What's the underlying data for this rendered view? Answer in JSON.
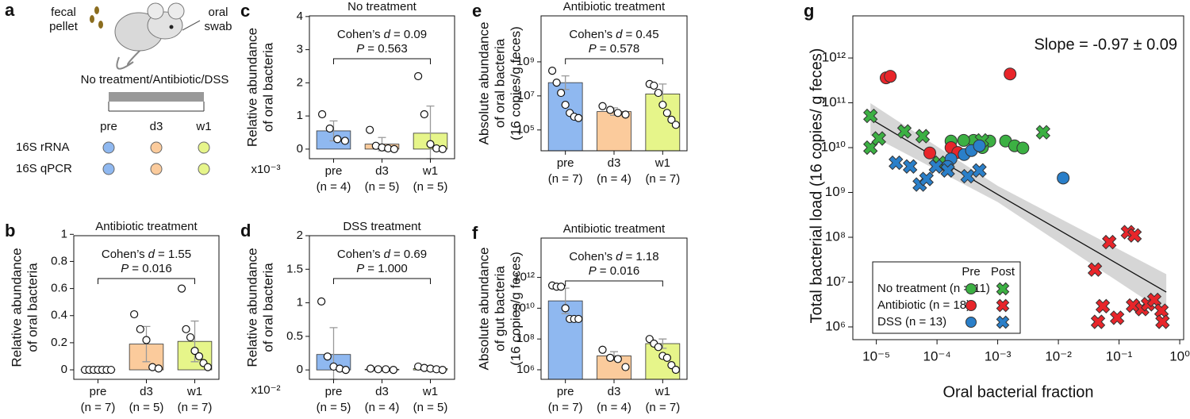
{
  "schematic": {
    "panel": "a",
    "pellet_label": [
      "fecal",
      "pellet"
    ],
    "swab_label": [
      "oral",
      "swab"
    ],
    "treatments": "No treatment/Antibiotic/DSS",
    "timepoints": [
      "pre",
      "d3",
      "w1"
    ],
    "assays": [
      "16S rRNA",
      "16S qPCR"
    ],
    "timepoint_colors": [
      "#8fb8f0",
      "#fbcb9c",
      "#e6f58a"
    ]
  },
  "chart_data": [
    {
      "panel": "b",
      "type": "bar",
      "title": "Antibiotic treatment",
      "y_label": [
        "Relative abundance",
        "of oral bacteria"
      ],
      "categories": [
        "pre",
        "d3",
        "w1"
      ],
      "category_n": [
        "(n = 7)",
        "(n = 5)",
        "(n = 7)"
      ],
      "colors": [
        "#8fb8f0",
        "#fbcb9c",
        "#e6f58a"
      ],
      "values": [
        0.003,
        0.19,
        0.21
      ],
      "error_upper": [
        0.006,
        0.32,
        0.36
      ],
      "points": [
        [
          0,
          0,
          0,
          0,
          0,
          0,
          0
        ],
        [
          0.41,
          0.3,
          0.22,
          0.02,
          0.01
        ],
        [
          0.6,
          0.3,
          0.24,
          0.14,
          0.1,
          0.05,
          0.02
        ]
      ],
      "ylim": [
        -0.07,
        0.99
      ],
      "yticks": [
        0,
        0.2,
        0.4,
        0.6,
        0.8,
        1
      ],
      "comparison": {
        "effect_label": "Cohen’s",
        "effect_symbol": "d",
        "effect_value": "= 1.55",
        "p_symbol": "P",
        "p_value": "= 0.016"
      }
    },
    {
      "panel": "c",
      "type": "bar",
      "title": "No treatment",
      "y_label": [
        "Relative abundance",
        "of oral bacteria"
      ],
      "multiplier": "x10⁻³",
      "categories": [
        "pre",
        "d3",
        "w1"
      ],
      "category_n": [
        "(n = 4)",
        "(n = 5)",
        "(n = 5)"
      ],
      "colors": [
        "#8fb8f0",
        "#fbcb9c",
        "#e6f58a"
      ],
      "values": [
        0.55,
        0.15,
        0.48
      ],
      "error_upper": [
        0.85,
        0.35,
        1.3
      ],
      "points": [
        [
          1.05,
          0.62,
          0.3,
          0.25
        ],
        [
          0.58,
          0.1,
          0.05,
          0.02,
          0
        ],
        [
          2.2,
          1.05,
          0.15,
          0.02,
          0
        ]
      ],
      "ylim": [
        -0.29,
        4.02
      ],
      "yticks": [
        0,
        1,
        2,
        3,
        4
      ],
      "comparison": {
        "effect_label": "Cohen’s",
        "effect_symbol": "d",
        "effect_value": "= 0.09",
        "p_symbol": "P",
        "p_value": "= 0.563"
      }
    },
    {
      "panel": "d",
      "type": "bar",
      "title": "DSS treatment",
      "y_label": [
        "Relative abundance",
        "of oral bacteria"
      ],
      "multiplier": "x10⁻²",
      "categories": [
        "pre",
        "d3",
        "w1"
      ],
      "category_n": [
        "(n = 5)",
        "(n = 4)",
        "(n = 5)"
      ],
      "colors": [
        "#8fb8f0",
        "#fbcb9c",
        "#e6f58a"
      ],
      "values": [
        0.23,
        0.01,
        0.02
      ],
      "error_upper": [
        0.63,
        0.02,
        0.04
      ],
      "points": [
        [
          1.02,
          0.2,
          0.05,
          0.02,
          0
        ],
        [
          0.02,
          0.01,
          0.01,
          0
        ],
        [
          0.05,
          0.03,
          0.02,
          0.01,
          0
        ]
      ],
      "ylim": [
        -0.14,
        2
      ],
      "yticks": [
        0,
        0.5,
        1,
        1.5,
        2
      ],
      "comparison": {
        "effect_label": "Cohen’s",
        "effect_symbol": "d",
        "effect_value": "= 0.69",
        "p_symbol": "P",
        "p_value": "= 1.000"
      }
    },
    {
      "panel": "e",
      "type": "bar",
      "log_y": true,
      "title": "Antibiotic treatment",
      "y_label": [
        "Absolute abundance",
        "of oral bacteria",
        "(16 copies/g feces)"
      ],
      "categories": [
        "pre",
        "d3",
        "w1"
      ],
      "category_n": [
        "(n = 7)",
        "(n = 4)",
        "(n = 7)"
      ],
      "colors": [
        "#8fb8f0",
        "#fbcb9c",
        "#e6f58a"
      ],
      "values": [
        60000000,
        1200000,
        13000000
      ],
      "error_upper": [
        150000000,
        2000000,
        50000000
      ],
      "points": [
        [
          300000000,
          60000000,
          15000000,
          3000000,
          1000000,
          600000,
          500000
        ],
        [
          2500000,
          1500000,
          1000000,
          800000
        ],
        [
          50000000,
          40000000,
          15000000,
          3000000,
          1000000,
          400000,
          200000
        ]
      ],
      "ylim": [
        6000,
        500000000000
      ],
      "yticks": [
        {
          "value": 100000,
          "label": "10⁵"
        },
        {
          "value": 10000000,
          "label": "10⁷"
        },
        {
          "value": 1000000000,
          "label": "10⁹"
        }
      ],
      "comparison": {
        "effect_label": "Cohen’s",
        "effect_symbol": "d",
        "effect_value": "= 0.45",
        "p_symbol": "P",
        "p_value": "= 0.578"
      }
    },
    {
      "panel": "f",
      "type": "bar",
      "log_y": true,
      "title": "Antibiotic treatment",
      "y_label": [
        "Absolute abundance",
        "of gut bacteria",
        "(16 copies/g feces)"
      ],
      "categories": [
        "pre",
        "d3",
        "w1"
      ],
      "category_n": [
        "(n = 7)",
        "(n = 4)",
        "(n = 7)"
      ],
      "colors": [
        "#8fb8f0",
        "#fbcb9c",
        "#e6f58a"
      ],
      "values": [
        30000000000,
        8000000,
        50000000
      ],
      "error_upper": [
        200000000000,
        15000000,
        100000000
      ],
      "points": [
        [
          300000000000,
          250000000000,
          250000000000,
          10000000000,
          2000000000,
          2000000000,
          2000000000
        ],
        [
          20000000,
          6000000,
          5000000,
          1500000
        ],
        [
          100000000,
          50000000,
          30000000,
          8000000,
          6000000,
          2000000,
          1000000
        ]
      ],
      "ylim": [
        240000,
        360000000000000
      ],
      "yticks": [
        {
          "value": 1000000,
          "label": "10⁶"
        },
        {
          "value": 100000000,
          "label": "10⁸"
        },
        {
          "value": 10000000000,
          "label": "10¹⁰"
        },
        {
          "value": 1000000000000,
          "label": "10¹²"
        }
      ],
      "comparison": {
        "effect_label": "Cohen’s",
        "effect_symbol": "d",
        "effect_value": "= 1.18",
        "p_symbol": "P",
        "p_value": "= 0.016"
      }
    },
    {
      "panel": "g",
      "type": "scatter",
      "log_x": true,
      "log_y": true,
      "x_label": "Oral bacterial fraction",
      "y_label": "Total bacterial load (16 copies/ g feces)",
      "annotation": "Slope = -0.97 ± 0.09",
      "xlim": [
        4.1e-06,
        1.16
      ],
      "ylim": [
        520000,
        8700000000000
      ],
      "xticks": [
        {
          "value": 1e-05,
          "label": "10⁻⁵"
        },
        {
          "value": 0.0001,
          "label": "10⁻⁴"
        },
        {
          "value": 0.001,
          "label": "10⁻³"
        },
        {
          "value": 0.01,
          "label": "10⁻²"
        },
        {
          "value": 0.1,
          "label": "10⁻¹"
        },
        {
          "value": 1,
          "label": "10⁰"
        }
      ],
      "yticks": [
        {
          "value": 1000000,
          "label": "10⁶"
        },
        {
          "value": 10000000,
          "label": "10⁷"
        },
        {
          "value": 100000000,
          "label": "10⁸"
        },
        {
          "value": 1000000000,
          "label": "10⁹"
        },
        {
          "value": 10000000000,
          "label": "10¹⁰"
        },
        {
          "value": 100000000000,
          "label": "10¹¹"
        },
        {
          "value": 1000000000000,
          "label": "10¹²"
        }
      ],
      "legend_columns": [
        "Pre",
        "Post"
      ],
      "groups": [
        {
          "name": "No treatment (n = 11)",
          "color": "#3cb043",
          "pre": {
            "x": [
              0.00017,
              0.0004,
              0.00074,
              0.00135,
              0.0019,
              0.0026,
              0.000275,
              0.00056
            ],
            "y": [
              14000000000,
              14500000000,
              14000000000,
              14000000000,
              11000000000,
              9800000000,
              14500000000,
              10000000000
            ]
          },
          "post": {
            "x": [
              8e-06,
              8e-06,
              1.1e-05,
              2.9e-05,
              5.8e-05,
              0.00055,
              0.0056,
              0.00011
            ],
            "y": [
              51000000000,
              10000000000,
              16000000000,
              23000000000,
              18000000000,
              14500000000,
              22000000000,
              4600000000
            ]
          }
        },
        {
          "name": "Antibiotic (n = 18)",
          "color": "#e8252a",
          "pre": {
            "x": [
              1.45e-05,
              1.7e-05,
              0.0016,
              7.6e-05,
              0.00017,
              0.00022
            ],
            "y": [
              360000000000,
              390000000000,
              440000000000,
              7600000000,
              10000000000,
              7800000000
            ]
          },
          "post": {
            "x": [
              0.069,
              0.14,
              0.18,
              0.04,
              0.054,
              0.045,
              0.17,
              0.24,
              0.3,
              0.38,
              0.5,
              0.52,
              0.093
            ],
            "y": [
              78000000,
              130000000,
              110000000,
              19000000,
              2900000,
              1300000,
              3000000,
              2500000,
              3200000,
              4000000,
              2300000,
              1300000,
              1600000
            ]
          }
        },
        {
          "name": "DSS (n = 13)",
          "color": "#2a7fc9",
          "pre": {
            "x": [
              0.00017,
              0.00028,
              0.00037,
              0.0005,
              0.012,
              0.00015
            ],
            "y": [
              5600000000,
              7000000000,
              8600000000,
              11000000000,
              2100000000,
              3800000000
            ]
          },
          "post": {
            "x": [
              2.1e-05,
              3.6e-05,
              5.2e-05,
              6.7e-05,
              9.6e-05,
              0.00015,
              0.00032,
              0.0005
            ],
            "y": [
              4600000000,
              3800000000,
              1500000000,
              2000000000,
              3800000000,
              3100000000,
              2300000000,
              3100000000
            ]
          }
        }
      ],
      "fit": {
        "x": [
          8e-06,
          0.001,
          0.6
        ],
        "y": [
          44000000000,
          900000000,
          6000000
        ],
        "ci_upper": [
          98000000000,
          1400000000,
          15000000
        ],
        "ci_lower": [
          19000000000,
          610000000,
          2000000
        ]
      }
    }
  ]
}
